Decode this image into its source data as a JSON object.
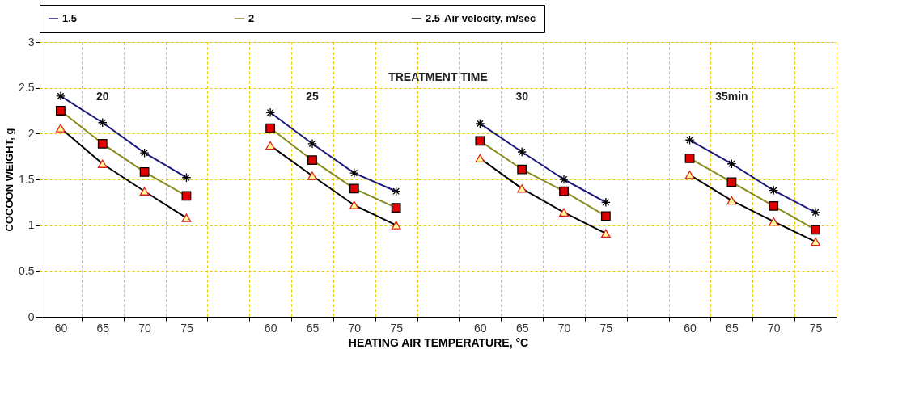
{
  "chart_data": {
    "type": "line",
    "categories": [
      "60",
      "65",
      "70",
      "75",
      null,
      "60",
      "65",
      "70",
      "75",
      null,
      "60",
      "65",
      "70",
      "75",
      null,
      "60",
      "65",
      "70",
      "75"
    ],
    "xlabel": "HEATING AIR TEMPERATURE, °C",
    "ylabel": "COCOON WEIGHT, g",
    "legend_title": "Air velocity, m/sec",
    "series": [
      {
        "name": "1.5",
        "color": "#1a1a7a",
        "marker": "cross",
        "values": [
          2.41,
          2.12,
          1.79,
          1.52,
          null,
          2.23,
          1.89,
          1.57,
          1.37,
          null,
          2.11,
          1.8,
          1.5,
          1.25,
          null,
          1.93,
          1.67,
          1.38,
          1.14
        ]
      },
      {
        "name": "2",
        "color": "#8a8a20",
        "marker": "square",
        "values": [
          2.25,
          1.89,
          1.58,
          1.32,
          null,
          2.06,
          1.71,
          1.4,
          1.19,
          null,
          1.92,
          1.61,
          1.37,
          1.1,
          null,
          1.73,
          1.47,
          1.21,
          0.95
        ]
      },
      {
        "name": "2.5",
        "color": "#000000",
        "marker": "triangle",
        "values": [
          2.06,
          1.67,
          1.37,
          1.08,
          null,
          1.87,
          1.54,
          1.22,
          1.0,
          null,
          1.73,
          1.4,
          1.14,
          0.91,
          null,
          1.55,
          1.27,
          1.04,
          0.82
        ]
      }
    ],
    "ylim": [
      0,
      3
    ],
    "yticks": [
      0,
      0.5,
      1,
      1.5,
      2,
      2.5,
      3
    ],
    "grid": true,
    "legend": "top",
    "line_style": "solid",
    "annotations": [
      "TREATMENT TIME",
      "20",
      "25",
      "30",
      "35min"
    ]
  }
}
